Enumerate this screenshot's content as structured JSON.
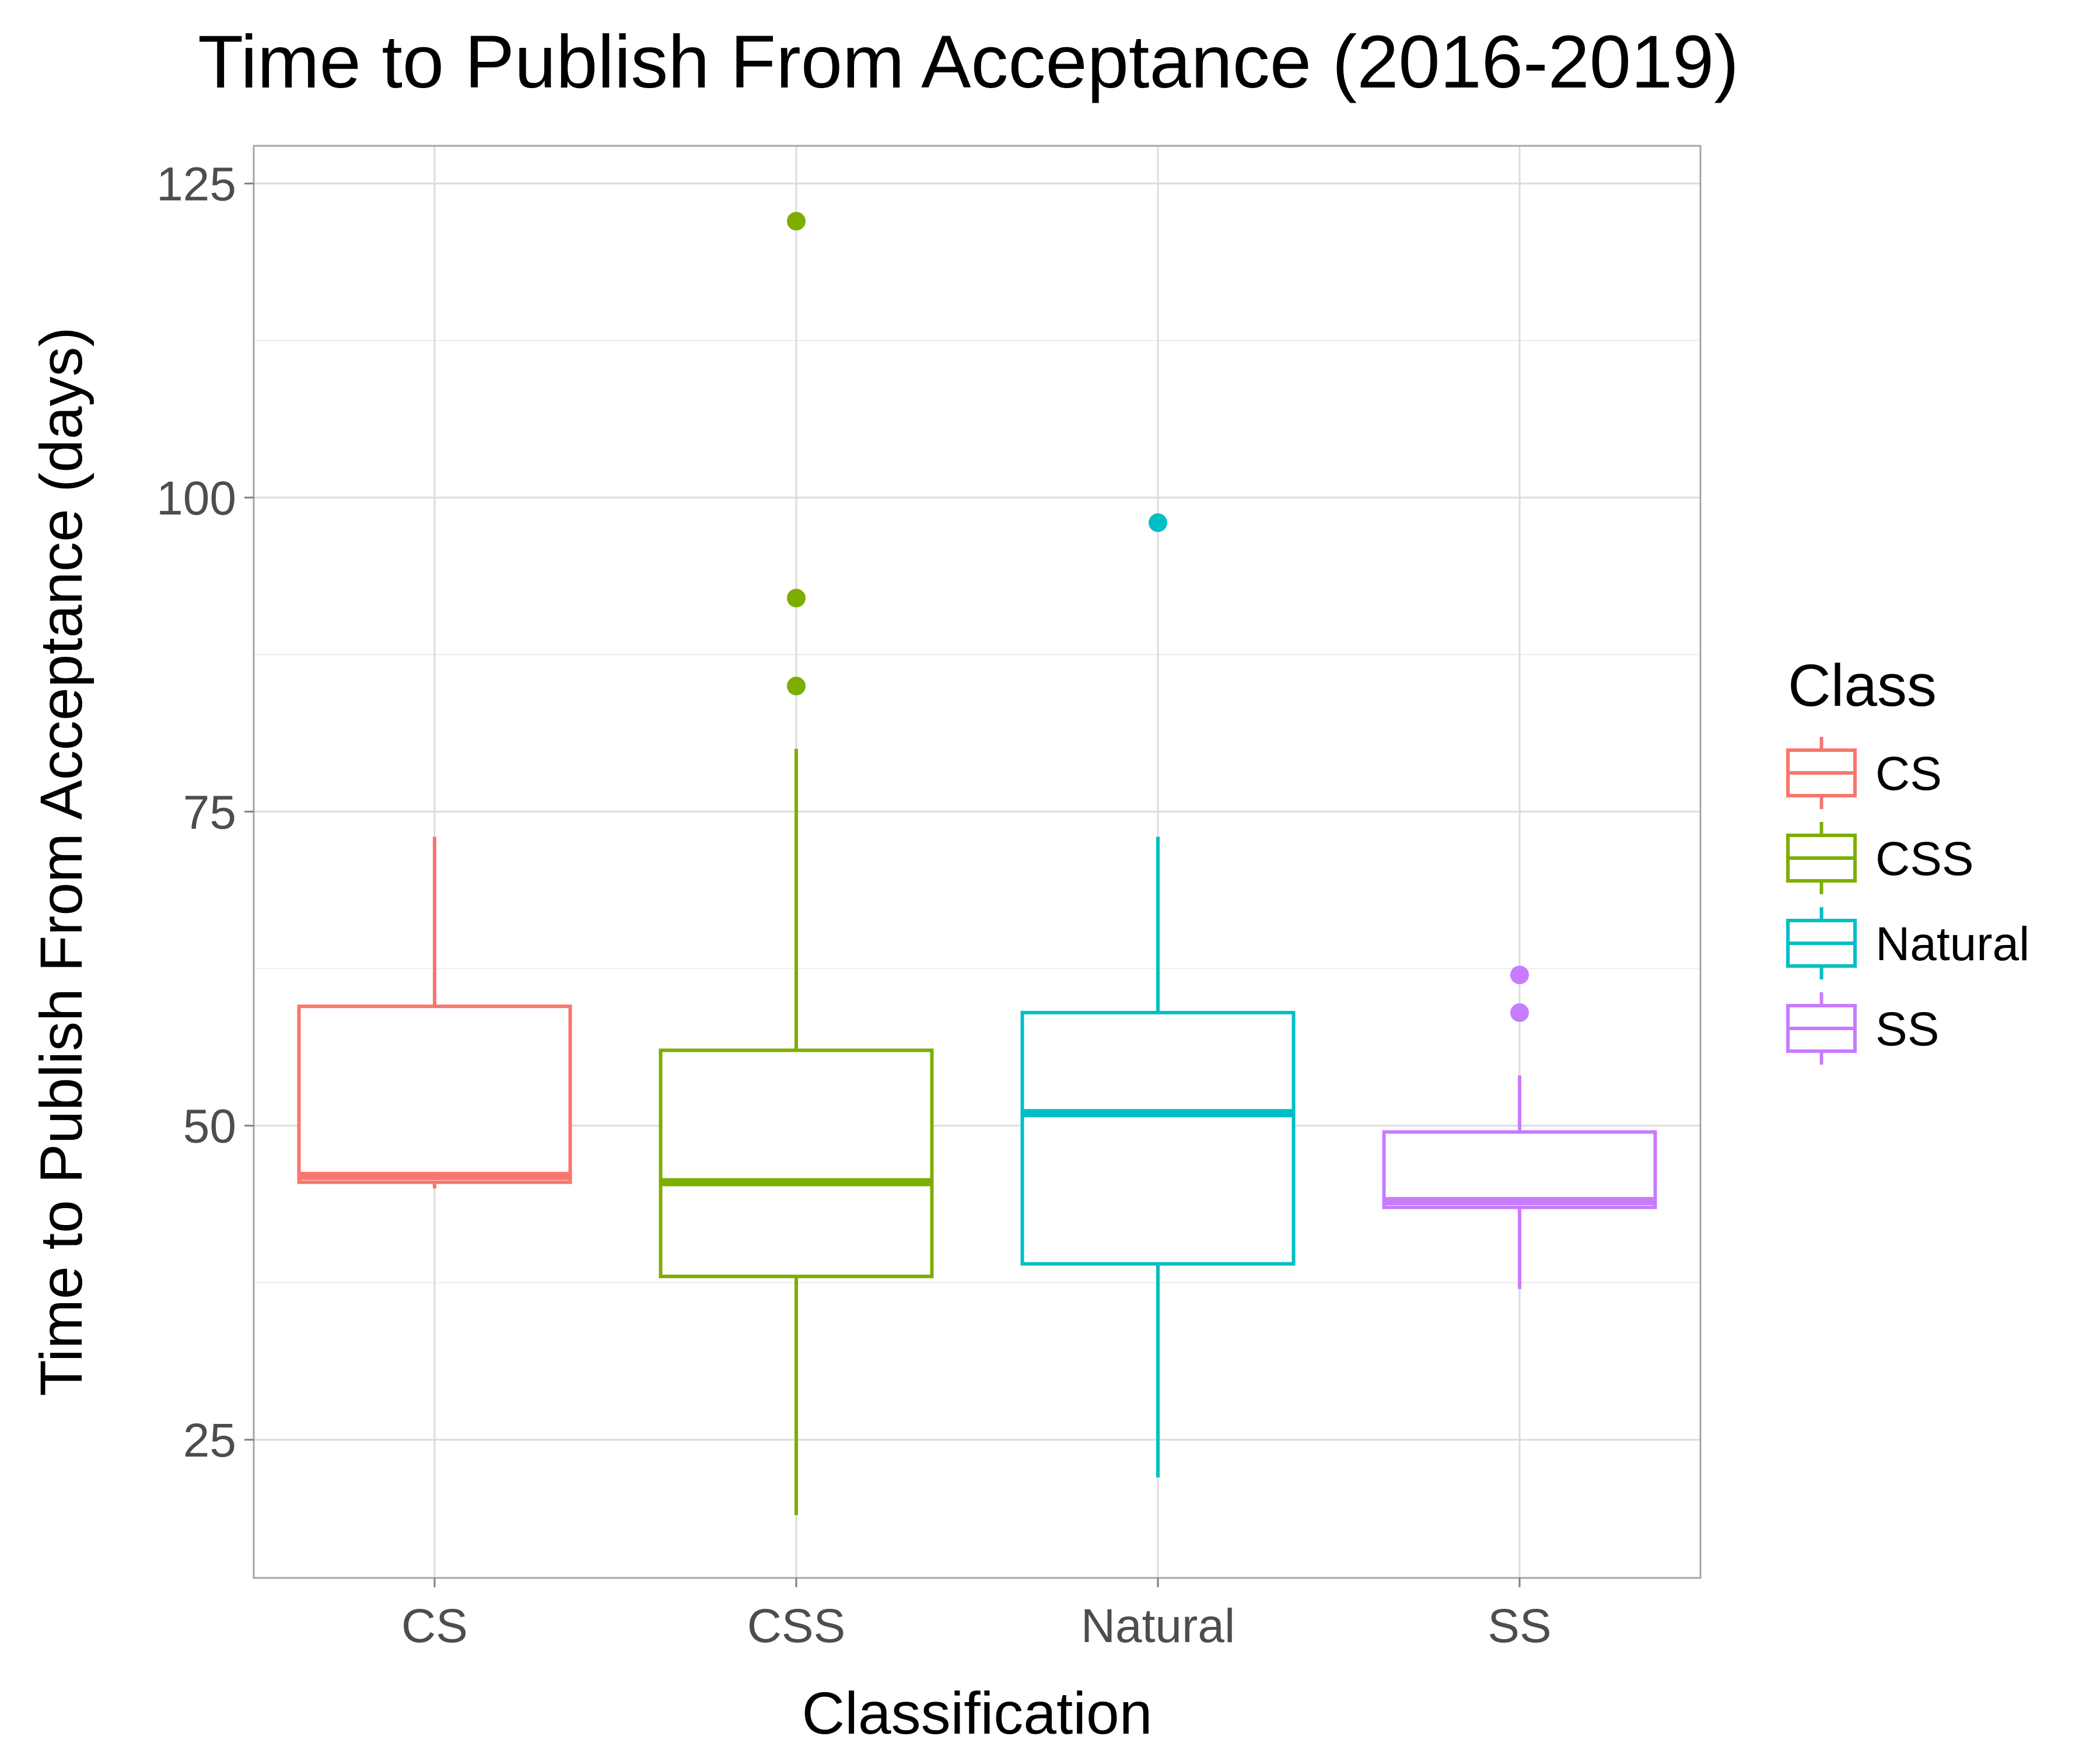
{
  "chart_data": {
    "type": "boxplot",
    "title": "Time to Publish From Acceptance (2016-2019)",
    "xlabel": "Classification",
    "ylabel": "Time to Publish From Acceptance (days)",
    "ylim": [
      14,
      128
    ],
    "yticks": [
      25,
      50,
      75,
      100,
      125
    ],
    "categories": [
      "CS",
      "CSS",
      "Natural",
      "SS"
    ],
    "grid": true,
    "legend": {
      "title": "Class",
      "placement": "right",
      "entries": [
        "CS",
        "CSS",
        "Natural",
        "SS"
      ]
    },
    "series": [
      {
        "name": "CS",
        "color": "#F8766D",
        "min": 45,
        "q1": 45.5,
        "median": 46,
        "q3": 59.5,
        "max": 73,
        "outliers": []
      },
      {
        "name": "CSS",
        "color": "#7CAE00",
        "min": 19,
        "q1": 38,
        "median": 45.5,
        "q3": 56,
        "max": 80,
        "outliers": [
          85,
          92,
          122
        ]
      },
      {
        "name": "Natural",
        "color": "#00BFC4",
        "min": 22,
        "q1": 39,
        "median": 51,
        "q3": 59,
        "max": 73,
        "outliers": [
          98
        ]
      },
      {
        "name": "SS",
        "color": "#C77CFF",
        "min": 37,
        "q1": 43.5,
        "median": 44,
        "q3": 49.5,
        "max": 54,
        "outliers": [
          59,
          62
        ]
      }
    ]
  }
}
